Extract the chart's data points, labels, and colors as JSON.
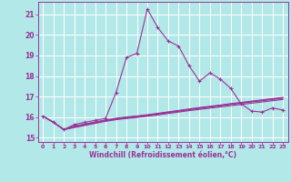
{
  "xlabel": "Windchill (Refroidissement éolien,°C)",
  "background_color": "#b3e8e8",
  "grid_color": "#ffffff",
  "line_color": "#993399",
  "xlim": [
    -0.5,
    23.5
  ],
  "ylim": [
    14.8,
    21.6
  ],
  "yticks": [
    15,
    16,
    17,
    18,
    19,
    20,
    21
  ],
  "xticks": [
    0,
    1,
    2,
    3,
    4,
    5,
    6,
    7,
    8,
    9,
    10,
    11,
    12,
    13,
    14,
    15,
    16,
    17,
    18,
    19,
    20,
    21,
    22,
    23
  ],
  "main_series": [
    16.05,
    15.75,
    15.4,
    15.65,
    15.75,
    15.85,
    15.95,
    17.2,
    18.9,
    19.1,
    21.25,
    20.35,
    19.7,
    19.45,
    18.5,
    17.75,
    18.15,
    17.85,
    17.4,
    16.65,
    16.3,
    16.25,
    16.45,
    16.35
  ],
  "flat_series": [
    [
      16.05,
      15.75,
      15.4,
      15.5,
      15.6,
      15.7,
      15.8,
      15.88,
      15.94,
      15.99,
      16.05,
      16.11,
      16.18,
      16.25,
      16.32,
      16.38,
      16.44,
      16.5,
      16.56,
      16.62,
      16.68,
      16.74,
      16.8,
      16.86
    ],
    [
      16.05,
      15.75,
      15.4,
      15.53,
      15.63,
      15.73,
      15.83,
      15.91,
      15.97,
      16.02,
      16.08,
      16.15,
      16.22,
      16.29,
      16.36,
      16.43,
      16.49,
      16.55,
      16.62,
      16.68,
      16.74,
      16.8,
      16.86,
      16.92
    ],
    [
      16.05,
      15.75,
      15.4,
      15.55,
      15.65,
      15.75,
      15.85,
      15.93,
      15.99,
      16.04,
      16.1,
      16.17,
      16.24,
      16.31,
      16.38,
      16.45,
      16.51,
      16.57,
      16.64,
      16.7,
      16.76,
      16.82,
      16.88,
      16.94
    ],
    [
      16.05,
      15.75,
      15.4,
      15.57,
      15.67,
      15.77,
      15.87,
      15.95,
      16.01,
      16.06,
      16.12,
      16.19,
      16.26,
      16.33,
      16.4,
      16.47,
      16.53,
      16.59,
      16.66,
      16.72,
      16.78,
      16.84,
      16.9,
      16.96
    ]
  ]
}
